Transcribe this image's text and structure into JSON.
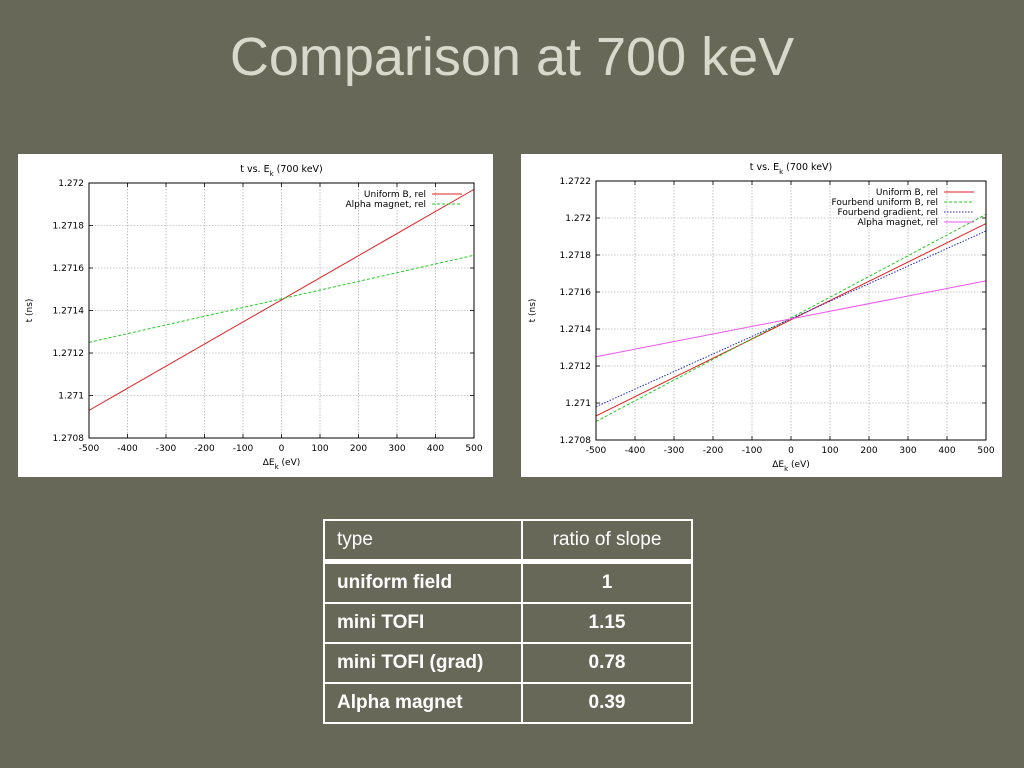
{
  "slide": {
    "title": "Comparison at 700 keV"
  },
  "chart_data": [
    {
      "type": "line",
      "title": "t vs. E",
      "title_subscript": "k",
      "title_suffix": " (700 keV)",
      "xlabel": "ΔE",
      "xlabel_subscript": "k",
      "xlabel_suffix": " (eV)",
      "ylabel": "t (ns)",
      "xlim": [
        -500,
        500
      ],
      "ylim": [
        1.2708,
        1.272
      ],
      "xticks": [
        -500,
        -400,
        -300,
        -200,
        -100,
        0,
        100,
        200,
        300,
        400,
        500
      ],
      "yticks": [
        "1.2708",
        "1.271",
        "1.2712",
        "1.2714",
        "1.2716",
        "1.2718",
        "1.272"
      ],
      "grid": true,
      "legend_position": "top-right",
      "series": [
        {
          "name": "Uniform B, rel",
          "color": "#e02020",
          "dash": "solid",
          "x": [
            -500,
            500
          ],
          "y": [
            1.27093,
            1.27197
          ]
        },
        {
          "name": "Alpha magnet, rel",
          "color": "#22cc22",
          "dash": "dashed",
          "x": [
            -500,
            500
          ],
          "y": [
            1.27125,
            1.27166
          ]
        }
      ]
    },
    {
      "type": "line",
      "title": "t vs. E",
      "title_subscript": "k",
      "title_suffix": " (700 keV)",
      "xlabel": "ΔE",
      "xlabel_subscript": "k",
      "xlabel_suffix": " (eV)",
      "ylabel": "t (ns)",
      "xlim": [
        -500,
        500
      ],
      "ylim": [
        1.2708,
        1.2722
      ],
      "xticks": [
        -500,
        -400,
        -300,
        -200,
        -100,
        0,
        100,
        200,
        300,
        400,
        500
      ],
      "yticks": [
        "1.2708",
        "1.271",
        "1.2712",
        "1.2714",
        "1.2716",
        "1.2718",
        "1.272",
        "1.2722"
      ],
      "grid": true,
      "legend_position": "top-right",
      "series": [
        {
          "name": "Uniform B, rel",
          "color": "#e02020",
          "dash": "solid",
          "x": [
            -500,
            500
          ],
          "y": [
            1.27093,
            1.27197
          ]
        },
        {
          "name": "Fourbend uniform B, rel",
          "color": "#22cc22",
          "dash": "dashed",
          "x": [
            -500,
            500
          ],
          "y": [
            1.2709,
            1.27202
          ]
        },
        {
          "name": "Fourbend gradient, rel",
          "color": "#2222cc",
          "dash": "dotted",
          "x": [
            -500,
            500
          ],
          "y": [
            1.27098,
            1.27193
          ]
        },
        {
          "name": "Alpha magnet, rel",
          "color": "#ee55ee",
          "dash": "solid",
          "x": [
            -500,
            500
          ],
          "y": [
            1.27125,
            1.27166
          ]
        }
      ]
    }
  ],
  "table": {
    "headers": [
      "type",
      "ratio of slope"
    ],
    "rows": [
      [
        "uniform field",
        "1"
      ],
      [
        "mini TOFI",
        "1.15"
      ],
      [
        "mini TOFI (grad)",
        "0.78"
      ],
      [
        "Alpha magnet",
        "0.39"
      ]
    ]
  }
}
